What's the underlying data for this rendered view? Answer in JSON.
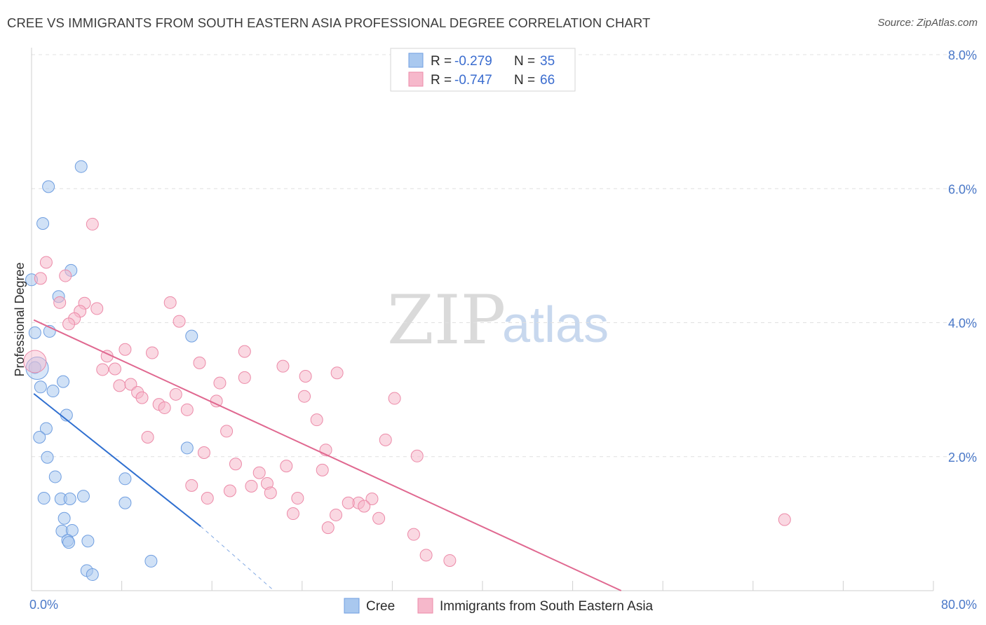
{
  "title": "CREE VS IMMIGRANTS FROM SOUTH EASTERN ASIA PROFESSIONAL DEGREE CORRELATION CHART",
  "source": "Source: ZipAtlas.com",
  "watermark": {
    "zip": "ZIP",
    "atlas": "atlas"
  },
  "colors": {
    "cree_fill": "#a9c8ef",
    "cree_stroke": "#6f9ee0",
    "cree_line": "#2f6fd0",
    "imm_fill": "#f6b8cb",
    "imm_stroke": "#ec8aa8",
    "imm_line": "#e06890",
    "grid": "#e0e0e0",
    "axis_label": "#4a78c8"
  },
  "legend": {
    "r_label": "R =",
    "n_label": "N =",
    "rows": [
      {
        "r": "-0.279",
        "n": "35"
      },
      {
        "r": "-0.747",
        "n": "66"
      }
    ]
  },
  "bottom_legend": [
    "Cree",
    "Immigrants from South Eastern Asia"
  ],
  "chart_data": {
    "type": "scatter",
    "title": "CREE VS IMMIGRANTS FROM SOUTH EASTERN ASIA PROFESSIONAL DEGREE CORRELATION CHART",
    "xlabel": "",
    "ylabel": "Professional Degree",
    "xlim": [
      0,
      80
    ],
    "ylim": [
      0,
      8.0
    ],
    "x_tick_labels": [
      "0.0%",
      "80.0%"
    ],
    "y_ticks": [
      2,
      4,
      6,
      8
    ],
    "y_tick_labels": [
      "2.0%",
      "4.0%",
      "6.0%",
      "8.0%"
    ],
    "grid": true,
    "series": [
      {
        "name": "Cree",
        "r": -0.279,
        "n": 35,
        "trend": {
          "x": [
            0.2,
            15.0
          ],
          "y": [
            2.94,
            0.96
          ],
          "dashed_to": [
            21.5,
            0.0
          ]
        },
        "points": [
          [
            4.4,
            6.33
          ],
          [
            1.5,
            6.03
          ],
          [
            1.0,
            5.48
          ],
          [
            3.5,
            4.78
          ],
          [
            0.0,
            4.64
          ],
          [
            2.4,
            4.39
          ],
          [
            0.3,
            3.85
          ],
          [
            1.6,
            3.87
          ],
          [
            14.2,
            3.8
          ],
          [
            0.3,
            3.33
          ],
          [
            2.8,
            3.12
          ],
          [
            0.8,
            3.04
          ],
          [
            1.9,
            2.98
          ],
          [
            3.1,
            2.62
          ],
          [
            1.3,
            2.42
          ],
          [
            0.7,
            2.29
          ],
          [
            13.8,
            2.13
          ],
          [
            1.4,
            1.99
          ],
          [
            2.1,
            1.7
          ],
          [
            8.3,
            1.67
          ],
          [
            1.1,
            1.38
          ],
          [
            2.6,
            1.37
          ],
          [
            3.4,
            1.37
          ],
          [
            4.6,
            1.41
          ],
          [
            8.3,
            1.31
          ],
          [
            2.9,
            1.08
          ],
          [
            2.7,
            0.89
          ],
          [
            3.6,
            0.9
          ],
          [
            3.2,
            0.75
          ],
          [
            3.3,
            0.72
          ],
          [
            5.0,
            0.74
          ],
          [
            10.6,
            0.44
          ],
          [
            4.9,
            0.3
          ],
          [
            5.4,
            0.24
          ],
          [
            0.5,
            3.32
          ]
        ]
      },
      {
        "name": "Immigrants from South Eastern Asia",
        "r": -0.747,
        "n": 66,
        "trend": {
          "x": [
            0.2,
            52.3
          ],
          "y": [
            4.04,
            0.0
          ]
        },
        "points": [
          [
            5.4,
            5.47
          ],
          [
            1.3,
            4.9
          ],
          [
            3.0,
            4.7
          ],
          [
            0.8,
            4.66
          ],
          [
            2.5,
            4.3
          ],
          [
            4.7,
            4.29
          ],
          [
            5.8,
            4.21
          ],
          [
            12.3,
            4.3
          ],
          [
            4.3,
            4.17
          ],
          [
            3.8,
            4.06
          ],
          [
            3.3,
            3.98
          ],
          [
            13.1,
            4.02
          ],
          [
            8.3,
            3.6
          ],
          [
            10.7,
            3.55
          ],
          [
            18.9,
            3.57
          ],
          [
            6.7,
            3.5
          ],
          [
            14.9,
            3.4
          ],
          [
            22.3,
            3.35
          ],
          [
            6.3,
            3.3
          ],
          [
            7.4,
            3.31
          ],
          [
            27.1,
            3.25
          ],
          [
            24.3,
            3.2
          ],
          [
            18.9,
            3.18
          ],
          [
            16.7,
            3.1
          ],
          [
            7.8,
            3.06
          ],
          [
            8.8,
            3.08
          ],
          [
            9.4,
            2.96
          ],
          [
            12.8,
            2.93
          ],
          [
            9.8,
            2.88
          ],
          [
            24.2,
            2.9
          ],
          [
            32.2,
            2.87
          ],
          [
            11.3,
            2.78
          ],
          [
            16.4,
            2.83
          ],
          [
            11.8,
            2.73
          ],
          [
            13.8,
            2.7
          ],
          [
            25.3,
            2.55
          ],
          [
            17.3,
            2.38
          ],
          [
            10.3,
            2.29
          ],
          [
            31.4,
            2.25
          ],
          [
            26.1,
            2.1
          ],
          [
            15.3,
            2.06
          ],
          [
            34.2,
            2.01
          ],
          [
            18.1,
            1.89
          ],
          [
            22.6,
            1.86
          ],
          [
            25.8,
            1.8
          ],
          [
            20.2,
            1.76
          ],
          [
            14.2,
            1.57
          ],
          [
            20.9,
            1.6
          ],
          [
            19.5,
            1.56
          ],
          [
            17.6,
            1.49
          ],
          [
            21.2,
            1.46
          ],
          [
            15.6,
            1.38
          ],
          [
            23.6,
            1.38
          ],
          [
            30.2,
            1.37
          ],
          [
            29.0,
            1.31
          ],
          [
            28.1,
            1.31
          ],
          [
            29.5,
            1.26
          ],
          [
            23.2,
            1.15
          ],
          [
            27.0,
            1.13
          ],
          [
            30.8,
            1.08
          ],
          [
            26.3,
            0.94
          ],
          [
            33.9,
            0.84
          ],
          [
            66.8,
            1.06
          ],
          [
            35.0,
            0.53
          ],
          [
            37.1,
            0.45
          ],
          [
            0.3,
            3.42
          ]
        ]
      }
    ]
  }
}
